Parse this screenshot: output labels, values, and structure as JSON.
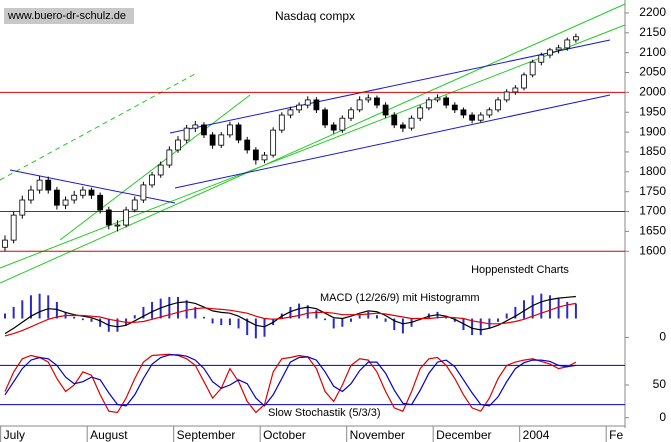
{
  "chart_data": [
    {
      "type": "candlestick",
      "title": "Nasdaq compx",
      "source": "www.buero-dr-schulz.de",
      "annotation": "Hoppenstedt Charts",
      "categories": [
        "July",
        null,
        null,
        null,
        null,
        null,
        null,
        null,
        null,
        null,
        "August",
        null,
        null,
        null,
        null,
        null,
        null,
        null,
        null,
        null,
        "September",
        null,
        null,
        null,
        null,
        null,
        null,
        null,
        null,
        null,
        "October",
        null,
        null,
        null,
        null,
        null,
        null,
        null,
        null,
        null,
        "November",
        null,
        null,
        null,
        null,
        null,
        null,
        null,
        null,
        null,
        "December",
        null,
        null,
        null,
        null,
        null,
        null,
        null,
        null,
        null,
        "2004",
        null,
        null,
        null,
        null,
        null,
        null,
        null,
        null,
        null,
        "Fe",
        null
      ],
      "open": [
        1610,
        1628,
        1691,
        1729,
        1754,
        1779,
        1754,
        1716,
        1729,
        1741,
        1754,
        1741,
        1704,
        1666,
        1666,
        1704,
        1729,
        1767,
        1792,
        1817,
        1855,
        1880,
        1910,
        1918,
        1893,
        1867,
        1893,
        1918,
        1880,
        1855,
        1830,
        1842,
        1905,
        1943,
        1956,
        1968,
        1981,
        1956,
        1918,
        1905,
        1935,
        1956,
        1981,
        1986,
        1968,
        1943,
        1918,
        1910,
        1935,
        1961,
        1981,
        1986,
        1968,
        1956,
        1943,
        1930,
        1943,
        1956,
        1981,
        2001,
        2011,
        2044,
        2076,
        2094,
        2107,
        2112,
        2132,
        null,
        null,
        null,
        null,
        null
      ],
      "high": [
        1640,
        1700,
        1740,
        1765,
        1790,
        1788,
        1762,
        1738,
        1752,
        1763,
        1760,
        1748,
        1712,
        1678,
        1712,
        1738,
        1775,
        1800,
        1826,
        1864,
        1890,
        1918,
        1928,
        1925,
        1900,
        1900,
        1926,
        1924,
        1888,
        1862,
        1850,
        1912,
        1950,
        1964,
        1975,
        1990,
        1988,
        1962,
        1925,
        1942,
        1963,
        1990,
        1995,
        1992,
        1975,
        1950,
        1925,
        1942,
        1968,
        1988,
        1995,
        1992,
        1975,
        1962,
        1950,
        1950,
        1962,
        1988,
        2008,
        2018,
        2050,
        2082,
        2100,
        2112,
        2120,
        2138,
        2148,
        null,
        null,
        null,
        null,
        null
      ],
      "low": [
        1600,
        1620,
        1682,
        1720,
        1745,
        1745,
        1705,
        1706,
        1720,
        1733,
        1732,
        1695,
        1655,
        1650,
        1660,
        1698,
        1722,
        1760,
        1785,
        1810,
        1848,
        1872,
        1900,
        1885,
        1858,
        1860,
        1886,
        1872,
        1846,
        1818,
        1822,
        1836,
        1898,
        1935,
        1948,
        1960,
        1948,
        1910,
        1896,
        1898,
        1928,
        1950,
        1974,
        1960,
        1935,
        1910,
        1900,
        1904,
        1928,
        1955,
        1975,
        1960,
        1948,
        1935,
        1922,
        1925,
        1936,
        1950,
        1975,
        1994,
        2005,
        2038,
        2068,
        2086,
        2098,
        2105,
        2125,
        null,
        null,
        null,
        null,
        null
      ],
      "close": [
        1628,
        1691,
        1729,
        1754,
        1779,
        1754,
        1716,
        1729,
        1741,
        1754,
        1741,
        1704,
        1666,
        1666,
        1704,
        1729,
        1767,
        1792,
        1817,
        1855,
        1880,
        1910,
        1918,
        1893,
        1867,
        1893,
        1918,
        1880,
        1855,
        1830,
        1842,
        1905,
        1943,
        1956,
        1968,
        1981,
        1956,
        1918,
        1905,
        1935,
        1956,
        1981,
        1986,
        1968,
        1943,
        1918,
        1910,
        1935,
        1961,
        1981,
        1986,
        1968,
        1956,
        1943,
        1930,
        1943,
        1956,
        1981,
        2001,
        2011,
        2044,
        2076,
        2094,
        2107,
        2112,
        2132,
        2140,
        null,
        null,
        null,
        null,
        null
      ],
      "up_color": "#ffffff",
      "down_color": "#000000",
      "ylim": [
        1515,
        2220
      ],
      "yticks": [
        1600,
        1650,
        1700,
        1750,
        1800,
        1850,
        1900,
        1950,
        2000,
        2050,
        2100,
        2150,
        2200
      ],
      "hlines": [
        2000,
        1700,
        1600
      ],
      "hline_color": "#e00000"
    },
    {
      "type": "macd",
      "title": "MACD (12/26/9) mit Histogramm",
      "ylim": [
        -10,
        60
      ],
      "yticks": [
        0
      ],
      "y2lim": [
        -16,
        16
      ],
      "series": [
        {
          "color": "#000000",
          "values": [
            5,
            12,
            20,
            28,
            34,
            38,
            37,
            33,
            30,
            28,
            26,
            22,
            16,
            14,
            16,
            22,
            28,
            34,
            39,
            43,
            46,
            47,
            45,
            40,
            35,
            33,
            32,
            28,
            22,
            16,
            14,
            20,
            28,
            34,
            38,
            40,
            38,
            32,
            26,
            25,
            28,
            32,
            35,
            34,
            29,
            22,
            18,
            20,
            24,
            28,
            30,
            28,
            24,
            18,
            12,
            10,
            12,
            16,
            22,
            28,
            35,
            42,
            47,
            50,
            52,
            53,
            54,
            null,
            null,
            null,
            null,
            null
          ]
        },
        {
          "color": "#e00000",
          "values": [
            2,
            5,
            9,
            14,
            19,
            24,
            27,
            29,
            29,
            29,
            28,
            27,
            24,
            22,
            20,
            20,
            21,
            24,
            27,
            30,
            33,
            36,
            38,
            39,
            38,
            37,
            36,
            34,
            32,
            28,
            25,
            24,
            25,
            27,
            29,
            32,
            33,
            33,
            32,
            30,
            30,
            30,
            31,
            32,
            31,
            29,
            27,
            25,
            25,
            25,
            26,
            27,
            26,
            25,
            22,
            20,
            18,
            18,
            19,
            21,
            24,
            28,
            32,
            36,
            40,
            43,
            45,
            null,
            null,
            null,
            null,
            null
          ]
        },
        {
          "color": "#2a2acc",
          "axis": "y2",
          "values": [
            3,
            7,
            11,
            14,
            15,
            14,
            10,
            4,
            1,
            -1,
            -2,
            -5,
            -8,
            -8,
            -4,
            2,
            7,
            10,
            12,
            13,
            13,
            11,
            7,
            1,
            -3,
            -4,
            -4,
            -6,
            -10,
            -12,
            -11,
            -4,
            3,
            7,
            9,
            8,
            5,
            -1,
            -6,
            -5,
            -2,
            2,
            4,
            2,
            -2,
            -7,
            -9,
            -5,
            -1,
            3,
            4,
            1,
            -2,
            -7,
            -10,
            -10,
            -6,
            -2,
            3,
            7,
            11,
            14,
            15,
            14,
            12,
            10,
            9,
            null,
            null,
            null,
            null,
            null
          ]
        }
      ]
    },
    {
      "type": "stochastic",
      "title": "Slow Stochastik (5/3/3)",
      "ylim": [
        -5,
        105
      ],
      "yticks": [
        0,
        50
      ],
      "hlines": [
        80,
        20
      ],
      "hline_color": "#0000cc",
      "series": [
        {
          "color": "#e00000",
          "values": [
            40,
            70,
            90,
            95,
            92,
            85,
            60,
            40,
            50,
            70,
            65,
            35,
            10,
            8,
            30,
            60,
            85,
            95,
            96,
            97,
            95,
            90,
            80,
            55,
            30,
            45,
            75,
            55,
            25,
            8,
            20,
            70,
            90,
            92,
            95,
            93,
            75,
            40,
            25,
            50,
            80,
            90,
            88,
            70,
            40,
            15,
            10,
            40,
            75,
            90,
            92,
            80,
            60,
            35,
            15,
            10,
            30,
            60,
            80,
            85,
            88,
            90,
            86,
            82,
            75,
            78,
            85,
            null,
            null,
            null,
            null,
            null
          ]
        },
        {
          "color": "#0000cc",
          "values": [
            35,
            55,
            75,
            88,
            92,
            90,
            80,
            62,
            52,
            55,
            62,
            58,
            38,
            20,
            18,
            35,
            60,
            82,
            92,
            96,
            96,
            94,
            88,
            75,
            55,
            45,
            50,
            58,
            52,
            30,
            18,
            35,
            60,
            85,
            92,
            93,
            88,
            70,
            48,
            40,
            52,
            72,
            85,
            85,
            68,
            42,
            22,
            20,
            42,
            68,
            85,
            88,
            78,
            58,
            38,
            20,
            18,
            32,
            55,
            75,
            84,
            88,
            88,
            86,
            80,
            78,
            80,
            null,
            null,
            null,
            null,
            null
          ]
        }
      ]
    }
  ]
}
